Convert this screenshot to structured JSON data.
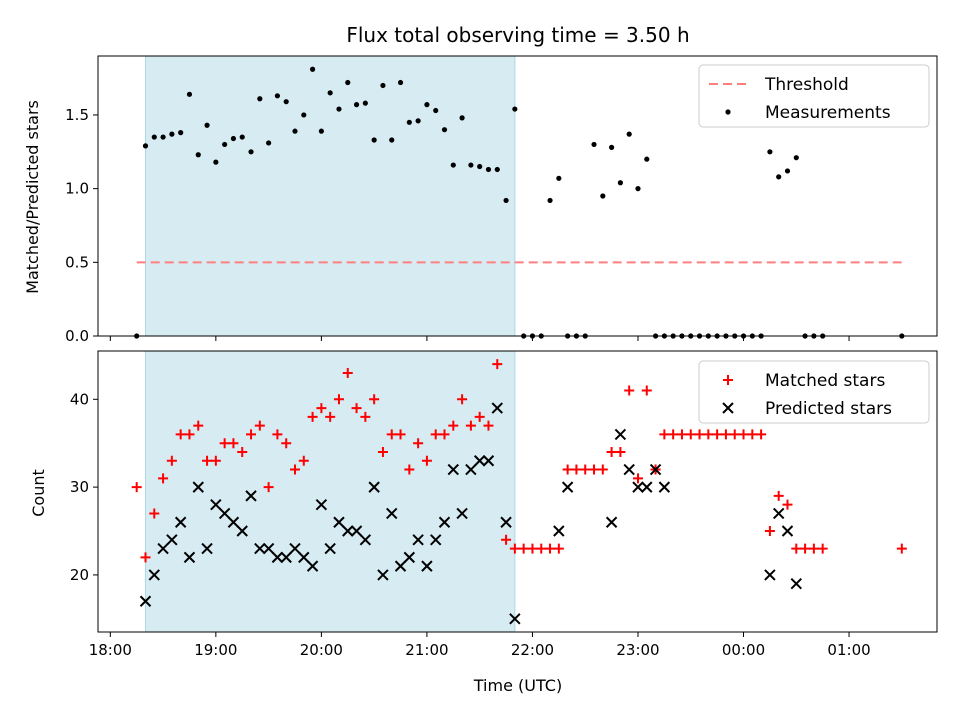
{
  "chart_data": [
    {
      "type": "scatter",
      "title": "Flux total observing time = 3.50 h",
      "xlabel": "",
      "ylabel": "Matched/Predicted stars",
      "ylim": [
        0,
        1.9
      ],
      "yticks": [
        "0.0",
        "0.5",
        "1.0",
        "1.5"
      ],
      "yticks_values": [
        0,
        0.5,
        1.0,
        1.5
      ],
      "shaded_span": [
        "18:20",
        "21:50"
      ],
      "shaded_color": "#add8e6",
      "legend": "top-right",
      "legend_entries": [
        "Threshold",
        "Measurements"
      ],
      "threshold": {
        "name": "Threshold",
        "y": 0.5,
        "x_range": [
          "18:15",
          "25:30"
        ],
        "color": "#ff7f7f"
      },
      "series": [
        {
          "name": "Measurements",
          "color": "#000000",
          "x": [
            "18:15",
            "18:20",
            "18:25",
            "18:30",
            "18:35",
            "18:40",
            "18:45",
            "18:50",
            "18:55",
            "19:00",
            "19:05",
            "19:10",
            "19:15",
            "19:20",
            "19:25",
            "19:30",
            "19:35",
            "19:40",
            "19:45",
            "19:50",
            "19:55",
            "20:00",
            "20:05",
            "20:10",
            "20:15",
            "20:20",
            "20:25",
            "20:30",
            "20:35",
            "20:40",
            "20:45",
            "20:50",
            "20:55",
            "21:00",
            "21:05",
            "21:10",
            "21:15",
            "21:20",
            "21:25",
            "21:30",
            "21:35",
            "21:40",
            "21:45",
            "21:50",
            "21:55",
            "22:00",
            "22:05",
            "22:10",
            "22:15",
            "22:20",
            "22:25",
            "22:30",
            "22:35",
            "22:40",
            "22:45",
            "22:50",
            "22:55",
            "23:00",
            "23:05",
            "23:10",
            "23:15",
            "23:20",
            "23:25",
            "23:30",
            "23:35",
            "23:40",
            "23:45",
            "23:50",
            "23:55",
            "24:00",
            "24:05",
            "24:10",
            "24:15",
            "24:20",
            "24:25",
            "24:30",
            "24:35",
            "24:40",
            "24:45",
            "25:30"
          ],
          "y": [
            0.0,
            1.29,
            1.35,
            1.35,
            1.37,
            1.38,
            1.64,
            1.23,
            1.43,
            1.18,
            1.3,
            1.34,
            1.35,
            1.25,
            1.61,
            1.31,
            1.63,
            1.59,
            1.39,
            1.5,
            1.81,
            1.39,
            1.65,
            1.54,
            1.72,
            1.57,
            1.58,
            1.33,
            1.7,
            1.33,
            1.72,
            1.45,
            1.46,
            1.57,
            1.53,
            1.4,
            1.16,
            1.48,
            1.16,
            1.15,
            1.13,
            1.13,
            0.92,
            1.54,
            0.0,
            0.0,
            0.0,
            0.92,
            1.07,
            0.0,
            0.0,
            0.0,
            1.3,
            0.95,
            1.28,
            1.04,
            1.37,
            1.0,
            1.2,
            0.0,
            0.0,
            0.0,
            0.0,
            0.0,
            0.0,
            0.0,
            0.0,
            0.0,
            0.0,
            0.0,
            0.0,
            0.0,
            1.25,
            1.08,
            1.12,
            1.21,
            0.0,
            0.0,
            0.0,
            0.0
          ]
        }
      ]
    },
    {
      "type": "scatter",
      "title": "",
      "xlabel": "Time (UTC)",
      "ylabel": "Count",
      "ylim": [
        13.5,
        45.5
      ],
      "yticks": [
        "20",
        "30",
        "40"
      ],
      "yticks_values": [
        20,
        30,
        40
      ],
      "xticks": [
        "18:00",
        "19:00",
        "20:00",
        "21:00",
        "22:00",
        "23:00",
        "00:00",
        "01:00"
      ],
      "xticks_values": [
        "18:00",
        "19:00",
        "20:00",
        "21:00",
        "22:00",
        "23:00",
        "24:00",
        "25:00"
      ],
      "xlim": [
        "17:53",
        "25:50"
      ],
      "shaded_span": [
        "18:20",
        "21:50"
      ],
      "shaded_color": "#add8e6",
      "legend": "top-right",
      "legend_entries": [
        "Matched stars",
        "Predicted stars"
      ],
      "series": [
        {
          "name": "Matched stars",
          "color": "#ff0000",
          "marker": "+",
          "x": [
            "18:15",
            "18:20",
            "18:25",
            "18:30",
            "18:35",
            "18:40",
            "18:45",
            "18:50",
            "18:55",
            "19:00",
            "19:05",
            "19:10",
            "19:15",
            "19:20",
            "19:25",
            "19:30",
            "19:35",
            "19:40",
            "19:45",
            "19:50",
            "19:55",
            "20:00",
            "20:05",
            "20:10",
            "20:15",
            "20:20",
            "20:25",
            "20:30",
            "20:35",
            "20:40",
            "20:45",
            "20:50",
            "20:55",
            "21:00",
            "21:05",
            "21:10",
            "21:15",
            "21:20",
            "21:25",
            "21:30",
            "21:35",
            "21:40",
            "21:45",
            "21:50",
            "21:55",
            "22:00",
            "22:05",
            "22:10",
            "22:15",
            "22:20",
            "22:25",
            "22:30",
            "22:35",
            "22:40",
            "22:45",
            "22:50",
            "22:55",
            "23:00",
            "23:05",
            "23:10",
            "23:15",
            "23:20",
            "23:25",
            "23:30",
            "23:35",
            "23:40",
            "23:45",
            "23:50",
            "23:55",
            "24:00",
            "24:05",
            "24:10",
            "24:15",
            "24:20",
            "24:25",
            "24:30",
            "24:35",
            "24:40",
            "24:45",
            "25:30"
          ],
          "y": [
            30,
            22,
            27,
            31,
            33,
            36,
            36,
            37,
            33,
            33,
            35,
            35,
            34,
            36,
            37,
            30,
            36,
            35,
            32,
            33,
            38,
            39,
            38,
            40,
            43,
            39,
            38,
            40,
            34,
            36,
            36,
            32,
            35,
            33,
            36,
            36,
            37,
            40,
            37,
            38,
            37,
            44,
            24,
            23,
            23,
            23,
            23,
            23,
            23,
            32,
            32,
            32,
            32,
            32,
            34,
            34,
            41,
            31,
            41,
            32,
            36,
            36,
            36,
            36,
            36,
            36,
            36,
            36,
            36,
            36,
            36,
            36,
            25,
            29,
            28,
            23,
            23,
            23,
            23,
            23
          ]
        },
        {
          "name": "Predicted stars",
          "color": "#000000",
          "marker": "x",
          "x": [
            "18:20",
            "18:25",
            "18:30",
            "18:35",
            "18:40",
            "18:45",
            "18:50",
            "18:55",
            "19:00",
            "19:05",
            "19:10",
            "19:15",
            "19:20",
            "19:25",
            "19:30",
            "19:35",
            "19:40",
            "19:45",
            "19:50",
            "19:55",
            "20:00",
            "20:05",
            "20:10",
            "20:15",
            "20:20",
            "20:25",
            "20:30",
            "20:35",
            "20:40",
            "20:45",
            "20:50",
            "20:55",
            "21:00",
            "21:05",
            "21:10",
            "21:15",
            "21:20",
            "21:25",
            "21:30",
            "21:35",
            "21:40",
            "21:45",
            "21:50",
            "22:15",
            "22:20",
            "22:45",
            "22:50",
            "22:55",
            "23:00",
            "23:05",
            "23:10",
            "23:15",
            "24:15",
            "24:20",
            "24:25",
            "24:30"
          ],
          "y": [
            17,
            20,
            23,
            24,
            26,
            22,
            30,
            23,
            28,
            27,
            26,
            25,
            29,
            23,
            23,
            22,
            22,
            23,
            22,
            21,
            28,
            23,
            26,
            25,
            25,
            24,
            30,
            20,
            27,
            21,
            22,
            24,
            21,
            24,
            26,
            32,
            27,
            32,
            33,
            33,
            39,
            26,
            15,
            25,
            30,
            26,
            36,
            32,
            30,
            30,
            32,
            30,
            20,
            27,
            25,
            19
          ]
        }
      ]
    }
  ]
}
